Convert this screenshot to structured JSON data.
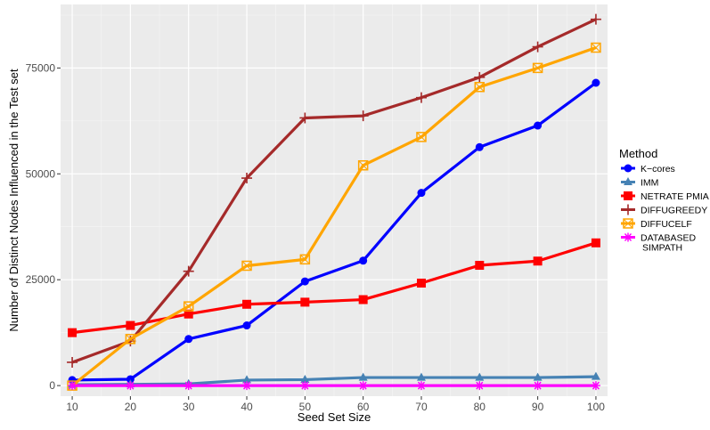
{
  "chart_data": {
    "type": "line",
    "title": "",
    "xlabel": "Seed Set Size",
    "ylabel": "Number of Distinct Nodes Influenced in the Test set",
    "x": [
      10,
      20,
      30,
      40,
      50,
      60,
      70,
      80,
      90,
      100
    ],
    "x_ticks": [
      "10",
      "20",
      "30",
      "40",
      "50",
      "60",
      "70",
      "80",
      "90",
      "100"
    ],
    "y_ticks": [
      0,
      25000,
      50000,
      75000
    ],
    "y_tick_labels": [
      "0",
      "25000",
      "50000",
      "75000"
    ],
    "xlim": [
      8,
      102
    ],
    "ylim": [
      -2500,
      90000
    ],
    "grid": true,
    "legend": {
      "title": "Method",
      "placement": "right"
    },
    "series": [
      {
        "name": "K−cores",
        "color": "#0000ff",
        "marker": "circle",
        "values": [
          1300,
          1500,
          11000,
          14200,
          24600,
          29500,
          45500,
          56300,
          61400,
          71500
        ]
      },
      {
        "name": "IMM",
        "color": "#4682b4",
        "marker": "triangle",
        "values": [
          200,
          300,
          400,
          1300,
          1400,
          1900,
          1900,
          1900,
          1900,
          2100
        ]
      },
      {
        "name": "NETRATE PMIA",
        "color": "#ff0000",
        "marker": "square",
        "values": [
          12500,
          14200,
          16900,
          19200,
          19700,
          20300,
          24200,
          28400,
          29400,
          33700
        ]
      },
      {
        "name": "DIFFUGREEDY",
        "color": "#a52a2a",
        "marker": "plus",
        "values": [
          5500,
          10500,
          27000,
          49000,
          63200,
          63700,
          68000,
          72800,
          80000,
          86500
        ]
      },
      {
        "name": "DIFFUCELF",
        "color": "#ffa500",
        "marker": "square-cross",
        "values": [
          0,
          11000,
          18700,
          28300,
          29800,
          52000,
          58700,
          70500,
          75000,
          79800
        ]
      },
      {
        "name": "DATABASED\nSIMPATH",
        "color": "#ff00ff",
        "marker": "asterisk",
        "values": [
          0,
          0,
          0,
          0,
          0,
          0,
          0,
          0,
          0,
          0
        ]
      }
    ]
  }
}
